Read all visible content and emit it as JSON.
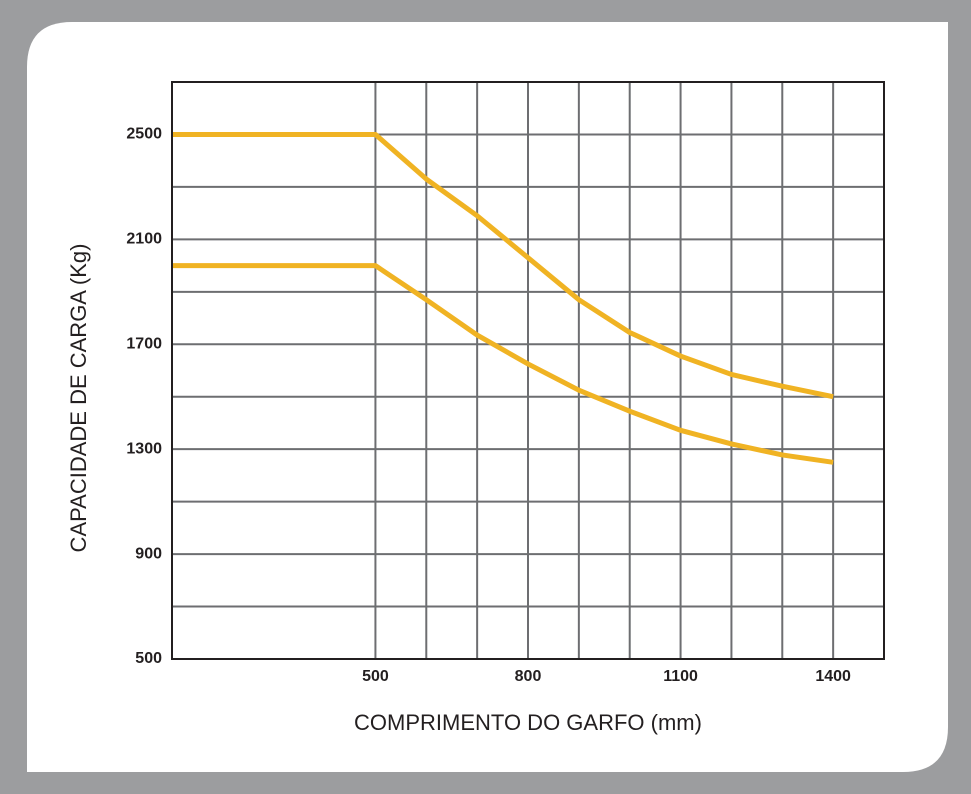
{
  "chart_data": {
    "type": "line",
    "x_label": "COMPRIMENTO DO GARFO (mm)",
    "y_label": "CAPACIDADE DE CARGA (Kg)",
    "x": [
      100,
      500,
      600,
      700,
      800,
      900,
      1000,
      1100,
      1200,
      1300,
      1400
    ],
    "series": [
      {
        "color": "#f0b323",
        "values": [
          2500,
          2500,
          2330,
          2190,
          2030,
          1870,
          1745,
          1655,
          1585,
          1540,
          1500
        ]
      },
      {
        "color": "#f0b323",
        "values": [
          2000,
          2000,
          1870,
          1735,
          1625,
          1525,
          1445,
          1372,
          1320,
          1278,
          1250
        ]
      }
    ],
    "xlim": [
      100,
      1500
    ],
    "ylim": [
      500,
      2700
    ],
    "xticks": [
      500,
      800,
      1100,
      1400
    ],
    "yticks": [
      500,
      900,
      1300,
      1700,
      2100,
      2500
    ],
    "x_grid": [
      500,
      600,
      700,
      800,
      900,
      1000,
      1100,
      1200,
      1300,
      1400
    ],
    "y_grid": [
      700,
      900,
      1100,
      1300,
      1500,
      1700,
      1900,
      2100,
      2300,
      2500
    ],
    "grid_color": "#6d6e71"
  }
}
